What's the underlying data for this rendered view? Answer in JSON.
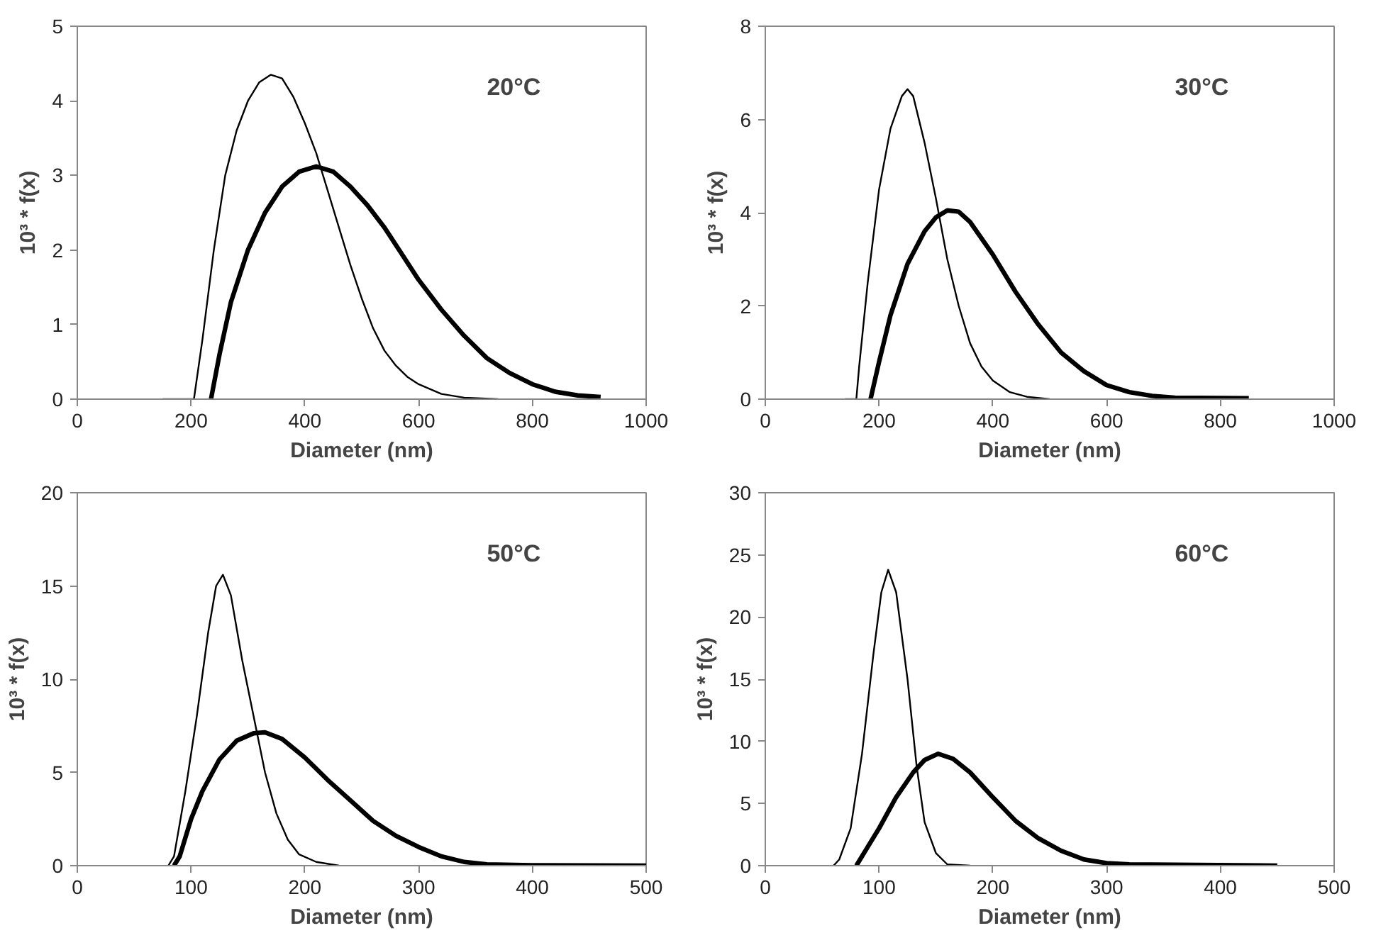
{
  "chart_data": [
    {
      "type": "line",
      "title": "20°C",
      "xlabel": "Diameter (nm)",
      "ylabel": "10³ * f(x)",
      "xlim": [
        0,
        1000
      ],
      "xticks": [
        0,
        200,
        400,
        600,
        800,
        1000
      ],
      "ylim": [
        0,
        5
      ],
      "yticks": [
        0,
        1,
        2,
        3,
        4,
        5
      ],
      "series": [
        {
          "color": "#000000",
          "x": [
            150,
            205,
            220,
            240,
            260,
            280,
            300,
            320,
            340,
            360,
            380,
            400,
            420,
            440,
            460,
            480,
            500,
            520,
            540,
            560,
            580,
            600,
            640,
            680,
            740
          ],
          "values": [
            0,
            0,
            0.8,
            2,
            3,
            3.6,
            4,
            4.25,
            4.35,
            4.3,
            4.05,
            3.7,
            3.3,
            2.8,
            2.3,
            1.8,
            1.35,
            0.95,
            0.65,
            0.45,
            0.3,
            0.2,
            0.07,
            0.02,
            0
          ]
        },
        {
          "color": "#000000",
          "x": [
            235,
            250,
            270,
            300,
            330,
            360,
            390,
            420,
            450,
            480,
            510,
            540,
            570,
            600,
            640,
            680,
            720,
            760,
            800,
            840,
            880,
            920
          ],
          "values": [
            0,
            0.6,
            1.3,
            2.0,
            2.5,
            2.85,
            3.05,
            3.12,
            3.05,
            2.85,
            2.6,
            2.3,
            1.95,
            1.6,
            1.2,
            0.85,
            0.55,
            0.35,
            0.2,
            0.1,
            0.05,
            0.03
          ]
        }
      ]
    },
    {
      "type": "line",
      "title": "30°C",
      "xlabel": "Diameter (nm)",
      "ylabel": "10³ * f(x)",
      "xlim": [
        0,
        1000
      ],
      "xticks": [
        0,
        200,
        400,
        600,
        800,
        1000
      ],
      "ylim": [
        0,
        8
      ],
      "yticks": [
        0,
        2,
        4,
        6,
        8
      ],
      "series": [
        {
          "color": "#000000",
          "x": [
            140,
            160,
            165,
            180,
            200,
            220,
            240,
            250,
            260,
            280,
            300,
            320,
            340,
            360,
            380,
            400,
            430,
            460,
            500
          ],
          "values": [
            0,
            0,
            0.7,
            2.5,
            4.5,
            5.8,
            6.5,
            6.65,
            6.5,
            5.5,
            4.3,
            3.0,
            2.0,
            1.2,
            0.7,
            0.4,
            0.15,
            0.05,
            0
          ]
        },
        {
          "color": "#000000",
          "x": [
            185,
            200,
            220,
            250,
            280,
            300,
            320,
            340,
            360,
            400,
            440,
            480,
            520,
            560,
            600,
            640,
            680,
            720,
            850
          ],
          "values": [
            0,
            0.8,
            1.8,
            2.9,
            3.6,
            3.9,
            4.05,
            4.02,
            3.8,
            3.1,
            2.3,
            1.6,
            1.0,
            0.6,
            0.3,
            0.15,
            0.07,
            0.03,
            0.02
          ]
        }
      ]
    },
    {
      "type": "line",
      "title": "50°C",
      "xlabel": "Diameter (nm)",
      "ylabel": "10³ * f(x)",
      "xlim": [
        0,
        500
      ],
      "xticks": [
        0,
        100,
        200,
        300,
        400,
        500
      ],
      "ylim": [
        0,
        20
      ],
      "yticks": [
        0,
        5,
        10,
        15,
        20
      ],
      "series": [
        {
          "color": "#000000",
          "x": [
            80,
            85,
            95,
            105,
            115,
            122,
            128,
            135,
            145,
            155,
            165,
            175,
            185,
            195,
            210,
            230
          ],
          "values": [
            0,
            0.5,
            4,
            8,
            12.5,
            15,
            15.6,
            14.5,
            11,
            8,
            5,
            2.8,
            1.4,
            0.6,
            0.2,
            0
          ]
        },
        {
          "color": "#000000",
          "x": [
            85,
            90,
            100,
            110,
            125,
            140,
            155,
            165,
            180,
            200,
            220,
            240,
            260,
            280,
            300,
            320,
            340,
            360,
            400,
            500
          ],
          "values": [
            0,
            0.5,
            2.5,
            4,
            5.7,
            6.7,
            7.1,
            7.15,
            6.8,
            5.8,
            4.6,
            3.5,
            2.4,
            1.6,
            1.0,
            0.5,
            0.2,
            0.07,
            0.02,
            0
          ]
        }
      ]
    },
    {
      "type": "line",
      "title": "60°C",
      "xlabel": "Diameter (nm)",
      "ylabel": "10³ * f(x)",
      "xlim": [
        0,
        500
      ],
      "xticks": [
        0,
        100,
        200,
        300,
        400,
        500
      ],
      "ylim": [
        0,
        30
      ],
      "yticks": [
        0,
        5,
        10,
        15,
        20,
        25,
        30
      ],
      "series": [
        {
          "color": "#000000",
          "x": [
            60,
            65,
            75,
            85,
            95,
            102,
            108,
            115,
            125,
            133,
            140,
            150,
            160,
            180
          ],
          "values": [
            0,
            0.5,
            3,
            9,
            17,
            22,
            23.8,
            22,
            15,
            8,
            3.5,
            1,
            0.1,
            0
          ]
        },
        {
          "color": "#000000",
          "x": [
            80,
            90,
            100,
            115,
            130,
            140,
            152,
            165,
            180,
            200,
            220,
            240,
            260,
            280,
            300,
            320,
            450
          ],
          "values": [
            0,
            1.5,
            3,
            5.5,
            7.5,
            8.5,
            9,
            8.6,
            7.5,
            5.5,
            3.6,
            2.2,
            1.2,
            0.5,
            0.2,
            0.1,
            0
          ]
        }
      ]
    }
  ]
}
